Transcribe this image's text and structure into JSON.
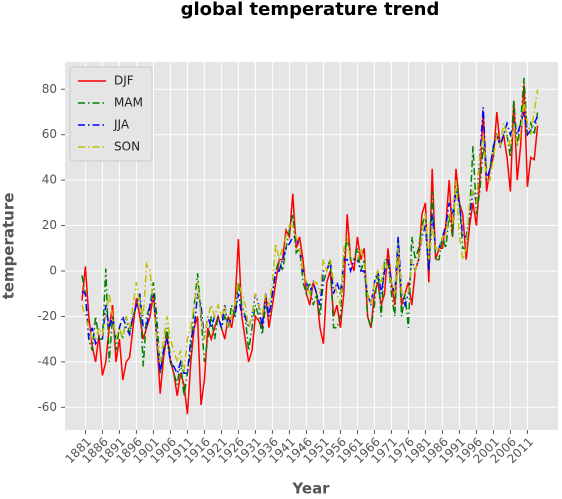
{
  "chart_data": {
    "type": "line",
    "title": "global temperature trend",
    "xlabel": "Year",
    "ylabel": "temperature",
    "x": [
      1880,
      1881,
      1882,
      1883,
      1884,
      1885,
      1886,
      1887,
      1888,
      1889,
      1890,
      1891,
      1892,
      1893,
      1894,
      1895,
      1896,
      1897,
      1898,
      1899,
      1900,
      1901,
      1902,
      1903,
      1904,
      1905,
      1906,
      1907,
      1908,
      1909,
      1910,
      1911,
      1912,
      1913,
      1914,
      1915,
      1916,
      1917,
      1918,
      1919,
      1920,
      1921,
      1922,
      1923,
      1924,
      1925,
      1926,
      1927,
      1928,
      1929,
      1930,
      1931,
      1932,
      1933,
      1934,
      1935,
      1936,
      1937,
      1938,
      1939,
      1940,
      1941,
      1942,
      1943,
      1944,
      1945,
      1946,
      1947,
      1948,
      1949,
      1950,
      1951,
      1952,
      1953,
      1954,
      1955,
      1956,
      1957,
      1958,
      1959,
      1960,
      1961,
      1962,
      1963,
      1964,
      1965,
      1966,
      1967,
      1968,
      1969,
      1970,
      1971,
      1972,
      1973,
      1974,
      1975,
      1976,
      1977,
      1978,
      1979,
      1980,
      1981,
      1982,
      1983,
      1984,
      1985,
      1986,
      1987,
      1988,
      1989,
      1990,
      1991,
      1992,
      1993,
      1994,
      1995,
      1996,
      1997,
      1998,
      1999,
      2000,
      2001,
      2002,
      2003,
      2004,
      2005,
      2006,
      2007,
      2008,
      2009,
      2010,
      2011,
      2012,
      2013,
      2014
    ],
    "series": [
      {
        "name": "DJF",
        "color": "#ff0000",
        "style": "solid",
        "values": [
          -13,
          2,
          -20,
          -33,
          -40,
          -28,
          -46,
          -40,
          -25,
          -15,
          -40,
          -30,
          -48,
          -40,
          -38,
          -25,
          -12,
          -20,
          -30,
          -25,
          -20,
          -10,
          -30,
          -54,
          -38,
          -28,
          -40,
          -45,
          -55,
          -45,
          -50,
          -63,
          -40,
          -25,
          -20,
          -59,
          -48,
          -25,
          -30,
          -25,
          -20,
          -25,
          -30,
          -20,
          -25,
          -15,
          14,
          -20,
          -30,
          -40,
          -35,
          -20,
          -22,
          -25,
          -10,
          -25,
          -15,
          -5,
          5,
          5,
          18,
          15,
          34,
          10,
          15,
          5,
          -10,
          -15,
          -5,
          -10,
          -25,
          -32,
          -5,
          0,
          -20,
          -15,
          -25,
          -10,
          25,
          5,
          0,
          15,
          5,
          10,
          -20,
          -25,
          -10,
          -5,
          -15,
          -10,
          10,
          -5,
          -15,
          10,
          -15,
          -10,
          -5,
          -15,
          0,
          5,
          25,
          30,
          -5,
          45,
          5,
          10,
          10,
          20,
          40,
          15,
          45,
          30,
          25,
          5,
          20,
          30,
          20,
          40,
          70,
          35,
          45,
          50,
          70,
          55,
          60,
          50,
          35,
          75,
          40,
          55,
          82,
          37,
          50,
          49,
          64
        ]
      },
      {
        "name": "MAM",
        "color": "#008000",
        "style": "dashdot",
        "values": [
          -2,
          -10,
          -30,
          -35,
          -20,
          -30,
          -30,
          1,
          -40,
          -20,
          -35,
          -25,
          -30,
          -20,
          -28,
          -20,
          -15,
          -10,
          -42,
          -20,
          -15,
          -5,
          -20,
          -45,
          -35,
          -25,
          -38,
          -45,
          -50,
          -40,
          -55,
          -45,
          -35,
          -15,
          -1,
          -20,
          -40,
          -30,
          -20,
          -30,
          -20,
          -25,
          -20,
          -25,
          -15,
          -20,
          -5,
          -15,
          -20,
          -35,
          -25,
          -15,
          -20,
          -28,
          -15,
          -20,
          -10,
          0,
          5,
          0,
          10,
          18,
          25,
          8,
          10,
          -5,
          -10,
          -5,
          -15,
          -10,
          -20,
          -5,
          0,
          5,
          -25,
          -25,
          -20,
          5,
          15,
          5,
          5,
          10,
          0,
          5,
          -20,
          -25,
          -15,
          0,
          -20,
          5,
          5,
          -10,
          -20,
          15,
          -20,
          -10,
          -25,
          15,
          5,
          10,
          20,
          25,
          0,
          35,
          5,
          5,
          15,
          10,
          25,
          15,
          40,
          30,
          10,
          10,
          25,
          55,
          25,
          35,
          55,
          45,
          45,
          55,
          60,
          55,
          60,
          60,
          50,
          75,
          55,
          65,
          85,
          60,
          65,
          60,
          70
        ]
      },
      {
        "name": "JJA",
        "color": "#0000ff",
        "style": "dashdot",
        "values": [
          -9,
          -10,
          -30,
          -25,
          -32,
          -30,
          -30,
          -15,
          -25,
          -20,
          -30,
          -25,
          -20,
          -25,
          -28,
          -20,
          -15,
          -10,
          -25,
          -25,
          -15,
          -10,
          -30,
          -45,
          -35,
          -30,
          -40,
          -42,
          -45,
          -40,
          -45,
          -45,
          -30,
          -25,
          -10,
          -15,
          -30,
          -20,
          -25,
          -20,
          -20,
          -25,
          -15,
          -25,
          -20,
          -20,
          -10,
          -20,
          -20,
          -25,
          -20,
          -10,
          -15,
          -25,
          -10,
          -20,
          -10,
          0,
          0,
          5,
          10,
          12,
          15,
          15,
          10,
          0,
          -5,
          -10,
          -5,
          -10,
          -15,
          0,
          0,
          5,
          -10,
          -5,
          -10,
          5,
          5,
          0,
          5,
          5,
          0,
          0,
          -10,
          -15,
          -5,
          0,
          -10,
          0,
          5,
          -5,
          -10,
          15,
          -10,
          -15,
          -10,
          5,
          0,
          5,
          15,
          20,
          0,
          25,
          10,
          10,
          15,
          20,
          30,
          25,
          35,
          30,
          15,
          15,
          25,
          35,
          30,
          50,
          72,
          40,
          45,
          55,
          60,
          55,
          60,
          65,
          60,
          65,
          60,
          65,
          70,
          60,
          62,
          65,
          68
        ]
      },
      {
        "name": "SON",
        "color": "#bfbf00",
        "style": "dashdot",
        "values": [
          -15,
          -20,
          -25,
          -30,
          -30,
          -25,
          -28,
          -20,
          -10,
          -20,
          -30,
          -25,
          -30,
          -20,
          -25,
          -15,
          -5,
          -15,
          -20,
          3,
          0,
          -15,
          -30,
          -40,
          -30,
          -20,
          -30,
          -35,
          -40,
          -35,
          -45,
          -30,
          -25,
          -15,
          -5,
          -20,
          -30,
          -20,
          -15,
          -20,
          -15,
          -20,
          -15,
          -25,
          -20,
          -15,
          -5,
          -10,
          -15,
          -25,
          -20,
          -10,
          -15,
          -20,
          -10,
          -15,
          -5,
          12,
          5,
          10,
          15,
          20,
          20,
          15,
          10,
          0,
          -5,
          -10,
          -5,
          -5,
          -10,
          5,
          0,
          5,
          -5,
          -10,
          -15,
          10,
          15,
          5,
          5,
          5,
          10,
          5,
          -10,
          -15,
          -5,
          0,
          -5,
          5,
          0,
          -5,
          -10,
          10,
          -10,
          -10,
          -10,
          5,
          0,
          5,
          15,
          25,
          5,
          20,
          10,
          10,
          15,
          15,
          25,
          20,
          40,
          15,
          5,
          10,
          30,
          35,
          30,
          50,
          60,
          40,
          40,
          50,
          60,
          55,
          65,
          60,
          55,
          65,
          55,
          60,
          75,
          65,
          60,
          70,
          80
        ]
      }
    ],
    "xlim": [
      1875,
      2020
    ],
    "xticks": [
      1881,
      1886,
      1891,
      1896,
      1901,
      1906,
      1911,
      1916,
      1921,
      1926,
      1931,
      1936,
      1941,
      1946,
      1951,
      1956,
      1961,
      1966,
      1971,
      1976,
      1981,
      1986,
      1991,
      1996,
      2001,
      2006,
      2011
    ],
    "ylim": [
      -70,
      92
    ],
    "yticks": [
      -60,
      -40,
      -20,
      0,
      20,
      40,
      60,
      80
    ],
    "grid": true,
    "legend": "upper left"
  }
}
